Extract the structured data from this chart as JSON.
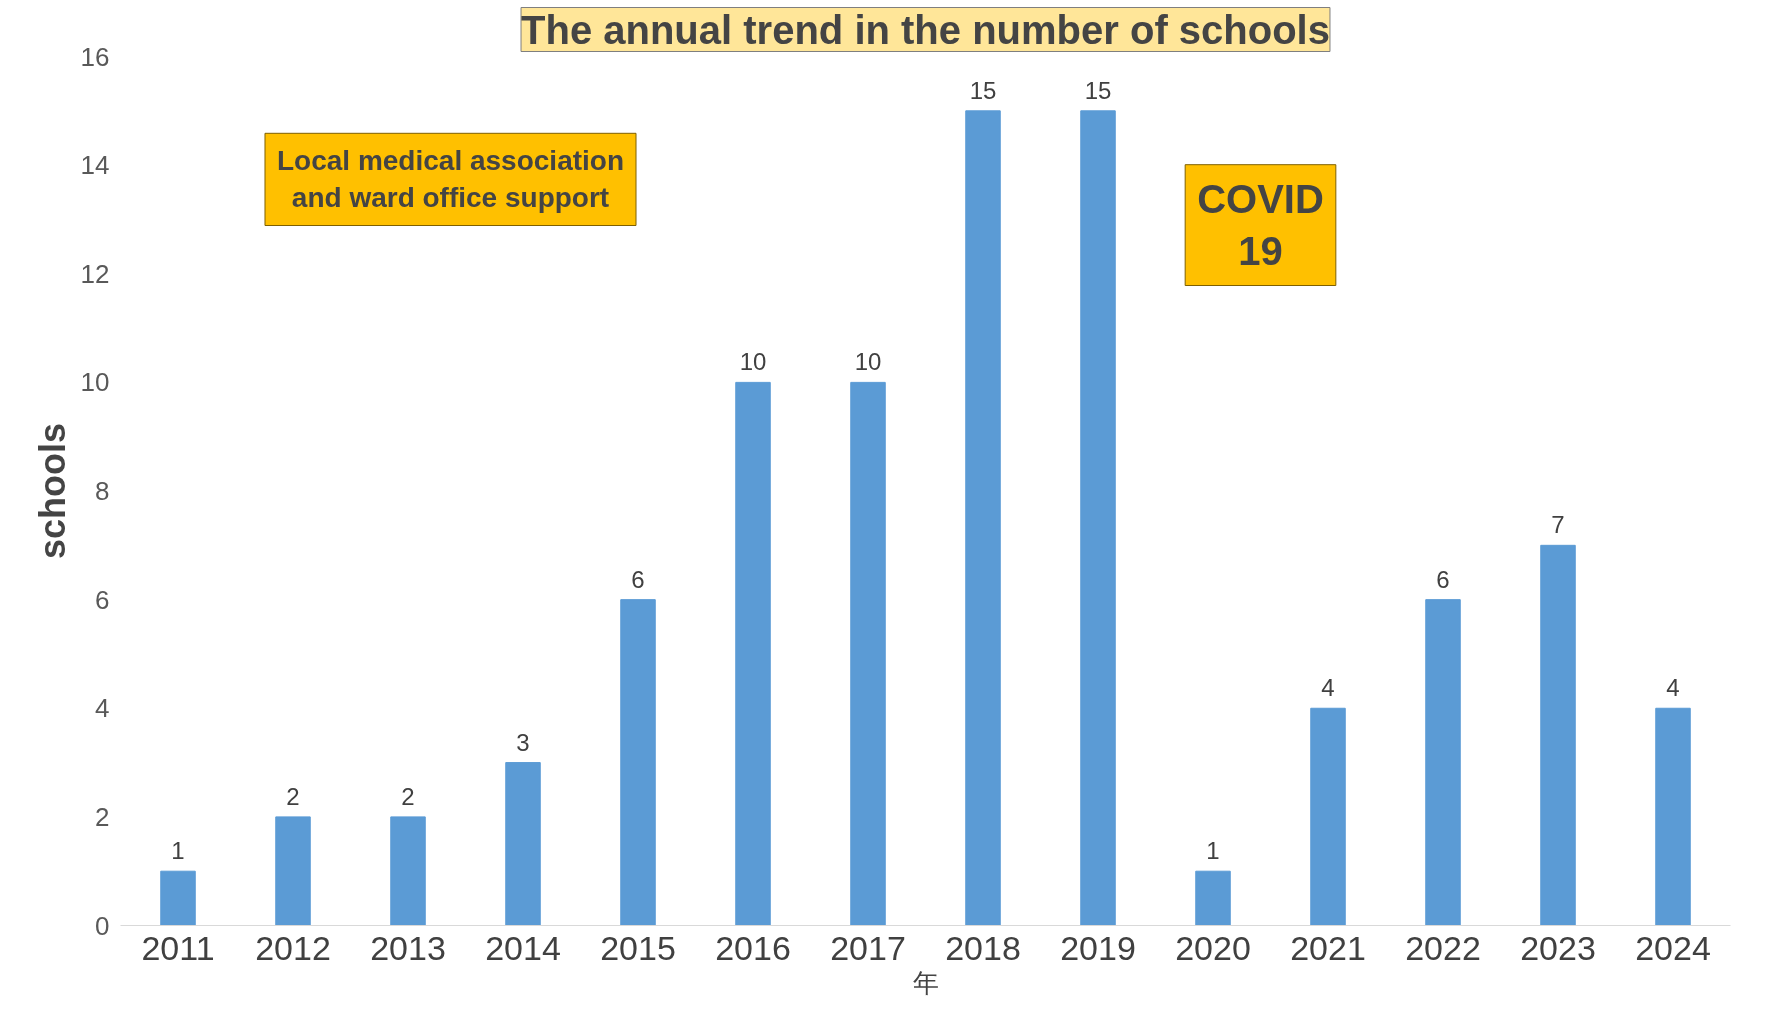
{
  "chart_data": {
    "type": "bar",
    "title": "The annual trend in the number of schools",
    "ylabel": "schools",
    "xlabel": "年",
    "categories": [
      "2011",
      "2012",
      "2013",
      "2014",
      "2015",
      "2016",
      "2017",
      "2018",
      "2019",
      "2020",
      "2021",
      "2022",
      "2023",
      "2024"
    ],
    "values": [
      1,
      2,
      2,
      3,
      6,
      10,
      10,
      15,
      15,
      1,
      4,
      6,
      7,
      4
    ],
    "color": "#5b9bd5",
    "ylim": [
      0,
      16
    ],
    "yticks": [
      0,
      2,
      4,
      6,
      8,
      10,
      12,
      14,
      16
    ],
    "grid": false,
    "data_labels": true,
    "annotations": [
      "Local medical association\nand ward office support",
      "COVID\n19"
    ]
  }
}
